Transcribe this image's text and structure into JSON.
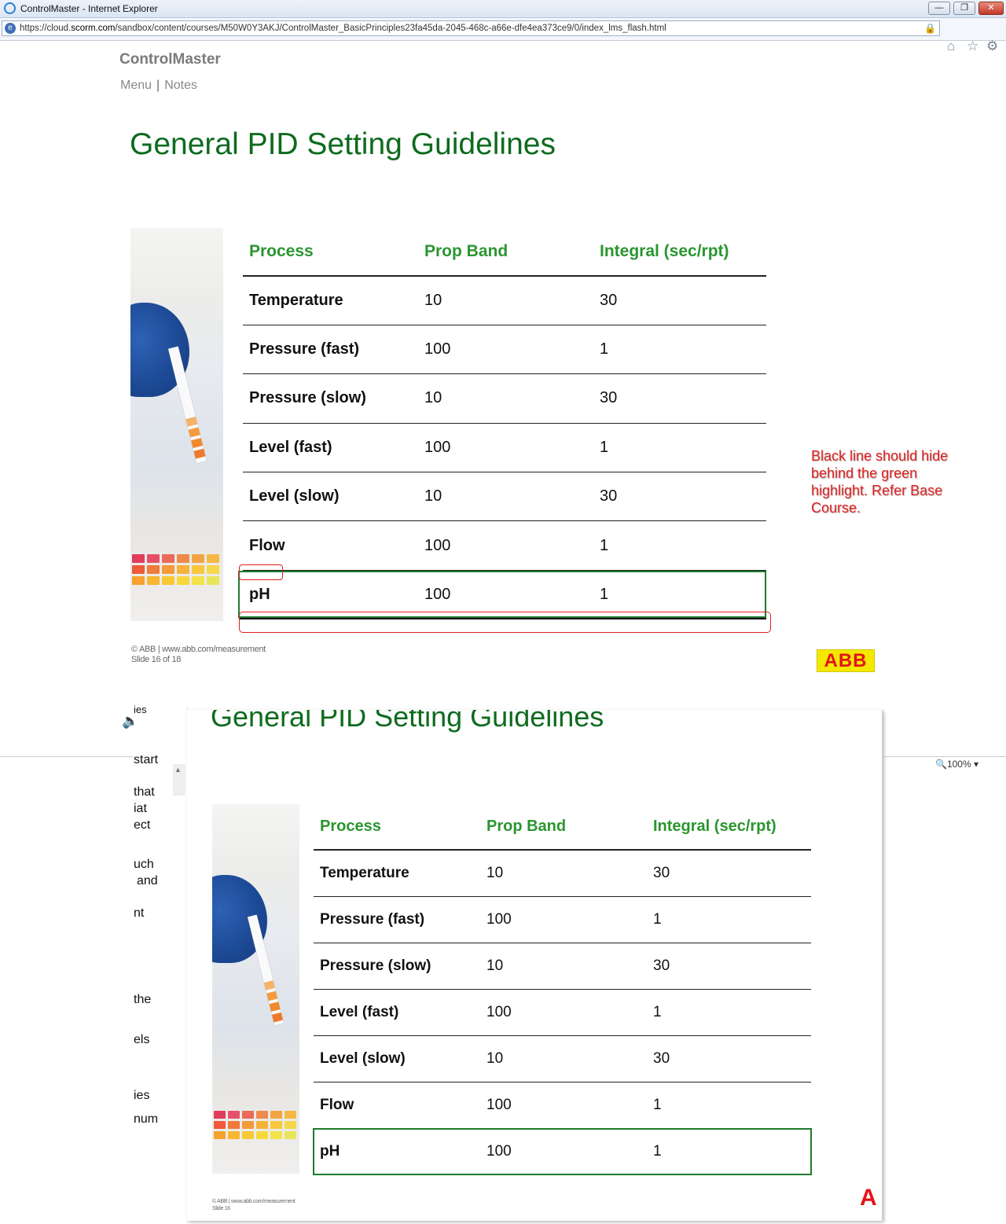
{
  "window": {
    "title": "ControlMaster - Internet Explorer",
    "url_prefix": "https://cloud.",
    "url_domain": "scorm.com",
    "url_path": "/sandbox/content/courses/M50W0Y3AKJ/ControlMaster_BasicPrinciples23fa45da-2045-468c-a66e-dfe4ea373ce9/0/index_lms_flash.html",
    "zoom": "100%"
  },
  "course": {
    "brand": "ControlMaster",
    "nav": [
      "Menu",
      "Notes"
    ]
  },
  "slide": {
    "title": "General PID Setting Guidelines",
    "headers": [
      "Process",
      "Prop Band",
      "Integral (sec/rpt)"
    ],
    "rows": [
      {
        "process": "Temperature",
        "prop_band": "10",
        "integral": "30"
      },
      {
        "process": "Pressure (fast)",
        "prop_band": "100",
        "integral": "1"
      },
      {
        "process": "Pressure (slow)",
        "prop_band": "10",
        "integral": "30"
      },
      {
        "process": "Level (fast)",
        "prop_band": "100",
        "integral": "1"
      },
      {
        "process": "Level (slow)",
        "prop_band": "10",
        "integral": "30"
      },
      {
        "process": "Flow",
        "prop_band": "100",
        "integral": "1"
      },
      {
        "process": "pH",
        "prop_band": "100",
        "integral": "1"
      }
    ],
    "footer_line1": "© ABB | www.abb.com/measurement",
    "footer_line2": "Slide 16 of 18",
    "lower_footer_line2": "Slide 16",
    "logo": "ABB",
    "lower_logo": "A"
  },
  "annotation": {
    "text": "Black line should hide behind the green highlight. Refer Base Course."
  },
  "lower_panel_fragments": [
    "ies",
    "start",
    "that",
    "iat",
    "ect",
    "uch",
    "and",
    "nt",
    "the",
    "els",
    "ies",
    "num"
  ],
  "colors": {
    "title_green": "#0e6b1e",
    "header_green": "#2a9630",
    "highlight_green": "#1f7a2e",
    "annotation_red": "#e02020",
    "abb_red": "#e2141a",
    "abb_yellow": "#f4e800"
  }
}
